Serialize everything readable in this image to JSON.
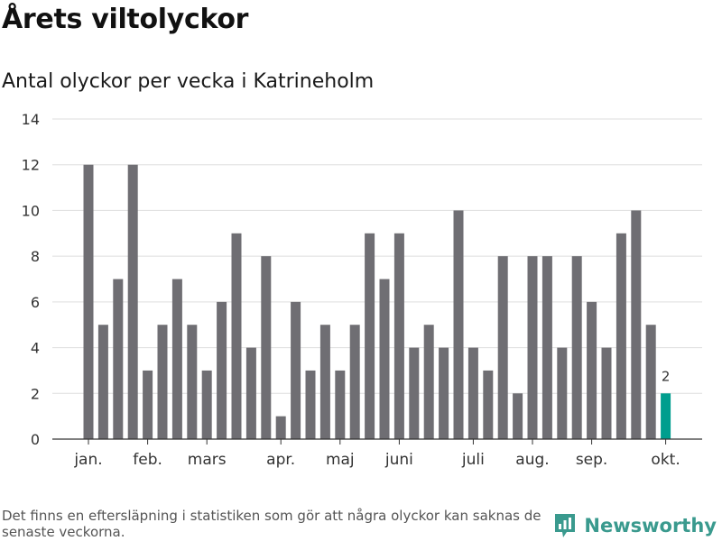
{
  "header": {
    "title": "Årets viltolyckor",
    "subtitle": "Antal olyckor per vecka i Katrineholm"
  },
  "footer": {
    "note": "Det finns en eftersläpning i statistiken som gör att några olyckor kan saknas de senaste veckorna.",
    "brand": "Newsworthy",
    "brand_icon": "newsworthy-logo-icon"
  },
  "colors": {
    "bar": "#6f6e73",
    "highlight": "#009e8e",
    "grid": "#dddddd",
    "axis": "#333333",
    "brand": "#3a9a8e"
  },
  "chart_data": {
    "type": "bar",
    "title": "Antal olyckor per vecka i Katrineholm",
    "xlabel": "",
    "ylabel": "",
    "ylim": [
      0,
      14
    ],
    "yticks": [
      0,
      2,
      4,
      6,
      8,
      10,
      12,
      14
    ],
    "grid": true,
    "values": [
      12,
      5,
      7,
      12,
      3,
      5,
      7,
      5,
      3,
      6,
      9,
      4,
      8,
      1,
      6,
      3,
      5,
      3,
      5,
      9,
      7,
      9,
      4,
      5,
      4,
      10,
      4,
      3,
      8,
      2,
      8,
      8,
      4,
      8,
      6,
      4,
      9,
      10,
      5,
      2
    ],
    "highlight_index": 39,
    "highlight_label": "2",
    "month_labels": [
      {
        "label": "jan.",
        "bar": 0
      },
      {
        "label": "feb.",
        "bar": 4
      },
      {
        "label": "mars",
        "bar": 8
      },
      {
        "label": "apr.",
        "bar": 13
      },
      {
        "label": "maj",
        "bar": 17
      },
      {
        "label": "juni",
        "bar": 21
      },
      {
        "label": "juli",
        "bar": 26
      },
      {
        "label": "aug.",
        "bar": 30
      },
      {
        "label": "sep.",
        "bar": 34
      },
      {
        "label": "okt.",
        "bar": 39
      }
    ]
  }
}
